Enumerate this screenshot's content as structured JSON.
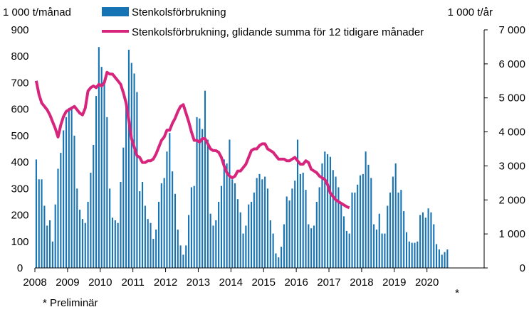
{
  "chart_data": {
    "type": "bar",
    "left_axis_label": "1 000 t/månad",
    "right_axis_label": "1 000 t/år",
    "left_ylim": [
      0,
      900
    ],
    "right_ylim": [
      0,
      7000
    ],
    "left_ticks": [
      "0",
      "100",
      "200",
      "300",
      "400",
      "500",
      "600",
      "700",
      "800",
      "900"
    ],
    "left_tick_values": [
      0,
      100,
      200,
      300,
      400,
      500,
      600,
      700,
      800,
      900
    ],
    "right_ticks": [
      "0",
      "1 000",
      "2 000",
      "3 000",
      "4 000",
      "5 000",
      "6 000",
      "7 000"
    ],
    "right_tick_values": [
      0,
      1000,
      2000,
      3000,
      4000,
      5000,
      6000,
      7000
    ],
    "x_ticks": [
      "2008",
      "2009",
      "2010",
      "2011",
      "2012",
      "2013",
      "2014",
      "2015",
      "2016",
      "2017",
      "2018",
      "2019",
      "2020"
    ],
    "footnote": "* Preliminär",
    "footnote_marker": "*",
    "grid": false,
    "legend_placement": "top",
    "series": [
      {
        "name": "Stenkolsförbrukning",
        "type": "bar",
        "axis": "left",
        "color": "#1673b4",
        "start": "2008-01",
        "frequency": "monthly",
        "values": [
          410,
          335,
          335,
          235,
          160,
          180,
          100,
          240,
          375,
          435,
          520,
          570,
          605,
          610,
          500,
          300,
          220,
          185,
          170,
          250,
          360,
          465,
          650,
          835,
          760,
          700,
          570,
          300,
          190,
          180,
          170,
          325,
          455,
          615,
          825,
          775,
          735,
          665,
          290,
          325,
          235,
          185,
          170,
          110,
          145,
          250,
          320,
          340,
          440,
          510,
          365,
          280,
          145,
          85,
          50,
          85,
          200,
          305,
          310,
          570,
          565,
          525,
          670,
          485,
          205,
          160,
          180,
          250,
          310,
          410,
          395,
          485,
          335,
          320,
          260,
          210,
          130,
          160,
          240,
          250,
          285,
          340,
          355,
          335,
          345,
          300,
          180,
          130,
          55,
          40,
          80,
          165,
          270,
          255,
          300,
          330,
          485,
          355,
          360,
          295,
          165,
          150,
          160,
          250,
          305,
          395,
          440,
          430,
          420,
          370,
          345,
          305,
          245,
          195,
          140,
          130,
          285,
          285,
          315,
          350,
          355,
          440,
          390,
          340,
          165,
          145,
          205,
          130,
          130,
          235,
          285,
          345,
          395,
          285,
          295,
          215,
          135,
          100,
          95,
          95,
          100,
          200,
          210,
          190,
          225,
          210,
          165,
          90,
          70,
          50,
          60,
          70
        ]
      },
      {
        "name": "Stenkolsförbrukning, glidande summa för 12 tidigare månader",
        "type": "line",
        "axis": "right",
        "color": "#d7247c",
        "start": "2008-01",
        "frequency": "monthly",
        "values": [
          5500,
          5100,
          4850,
          4750,
          4650,
          4500,
          4300,
          4100,
          3850,
          4200,
          4450,
          4600,
          4650,
          4700,
          4750,
          4650,
          4550,
          4500,
          4700,
          5200,
          5300,
          5350,
          5300,
          5400,
          5350,
          5450,
          5750,
          5700,
          5700,
          5600,
          5500,
          5400,
          5150,
          4850,
          4350,
          3800,
          3550,
          3300,
          3250,
          3100,
          3100,
          3150,
          3150,
          3200,
          3350,
          3550,
          3750,
          3850,
          4050,
          4050,
          4250,
          4400,
          4600,
          4750,
          4800,
          4550,
          4300,
          4000,
          3750,
          3750,
          3700,
          3800,
          3800,
          3650,
          3500,
          3450,
          3450,
          3400,
          3250,
          3000,
          2800,
          2700,
          2650,
          2700,
          2850,
          2850,
          2950,
          3050,
          3250,
          3450,
          3500,
          3500,
          3600,
          3650,
          3650,
          3500,
          3450,
          3400,
          3300,
          3200,
          3200,
          3200,
          3150,
          3150,
          3200,
          3250,
          3150,
          3050,
          3050,
          3150,
          3100,
          2900,
          2850,
          2800,
          2700,
          2650,
          2600,
          2450,
          2200,
          2100,
          2000,
          1950,
          1900,
          1850,
          1800,
          1770
        ]
      }
    ]
  }
}
